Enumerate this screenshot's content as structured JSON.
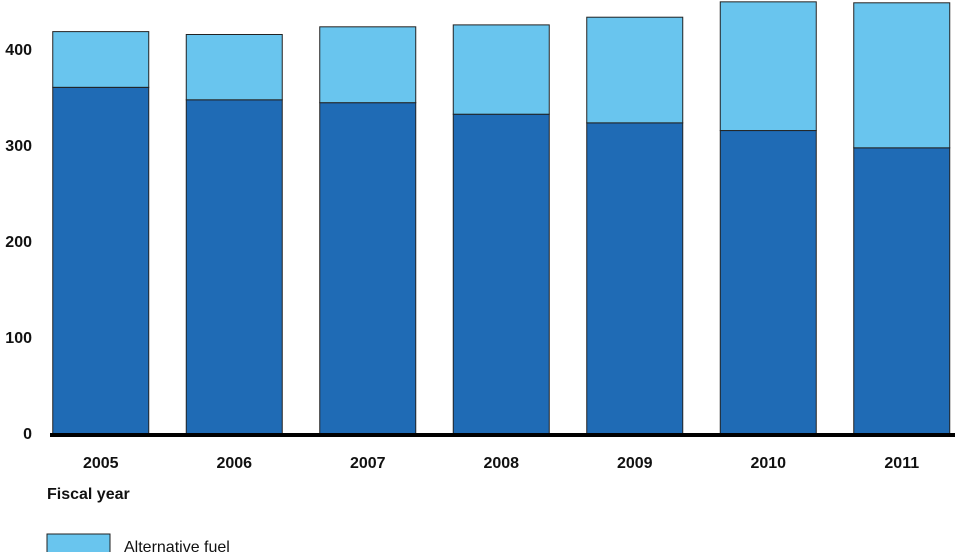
{
  "chart_data": {
    "type": "stacked-bar",
    "x_label": "Fiscal year",
    "categories": [
      "2005",
      "2006",
      "2007",
      "2008",
      "2009",
      "2010",
      "2011"
    ],
    "series": [
      {
        "color": "#1f6bb5",
        "values": [
          362,
          349,
          346,
          334,
          325,
          317,
          299
        ]
      },
      {
        "name": "Alternative fuel",
        "color": "#69c5ee",
        "values": [
          58,
          68,
          79,
          93,
          110,
          134,
          151
        ]
      }
    ],
    "ylim": [
      0,
      455
    ],
    "yticks": [
      0,
      100,
      200,
      300,
      400
    ]
  }
}
